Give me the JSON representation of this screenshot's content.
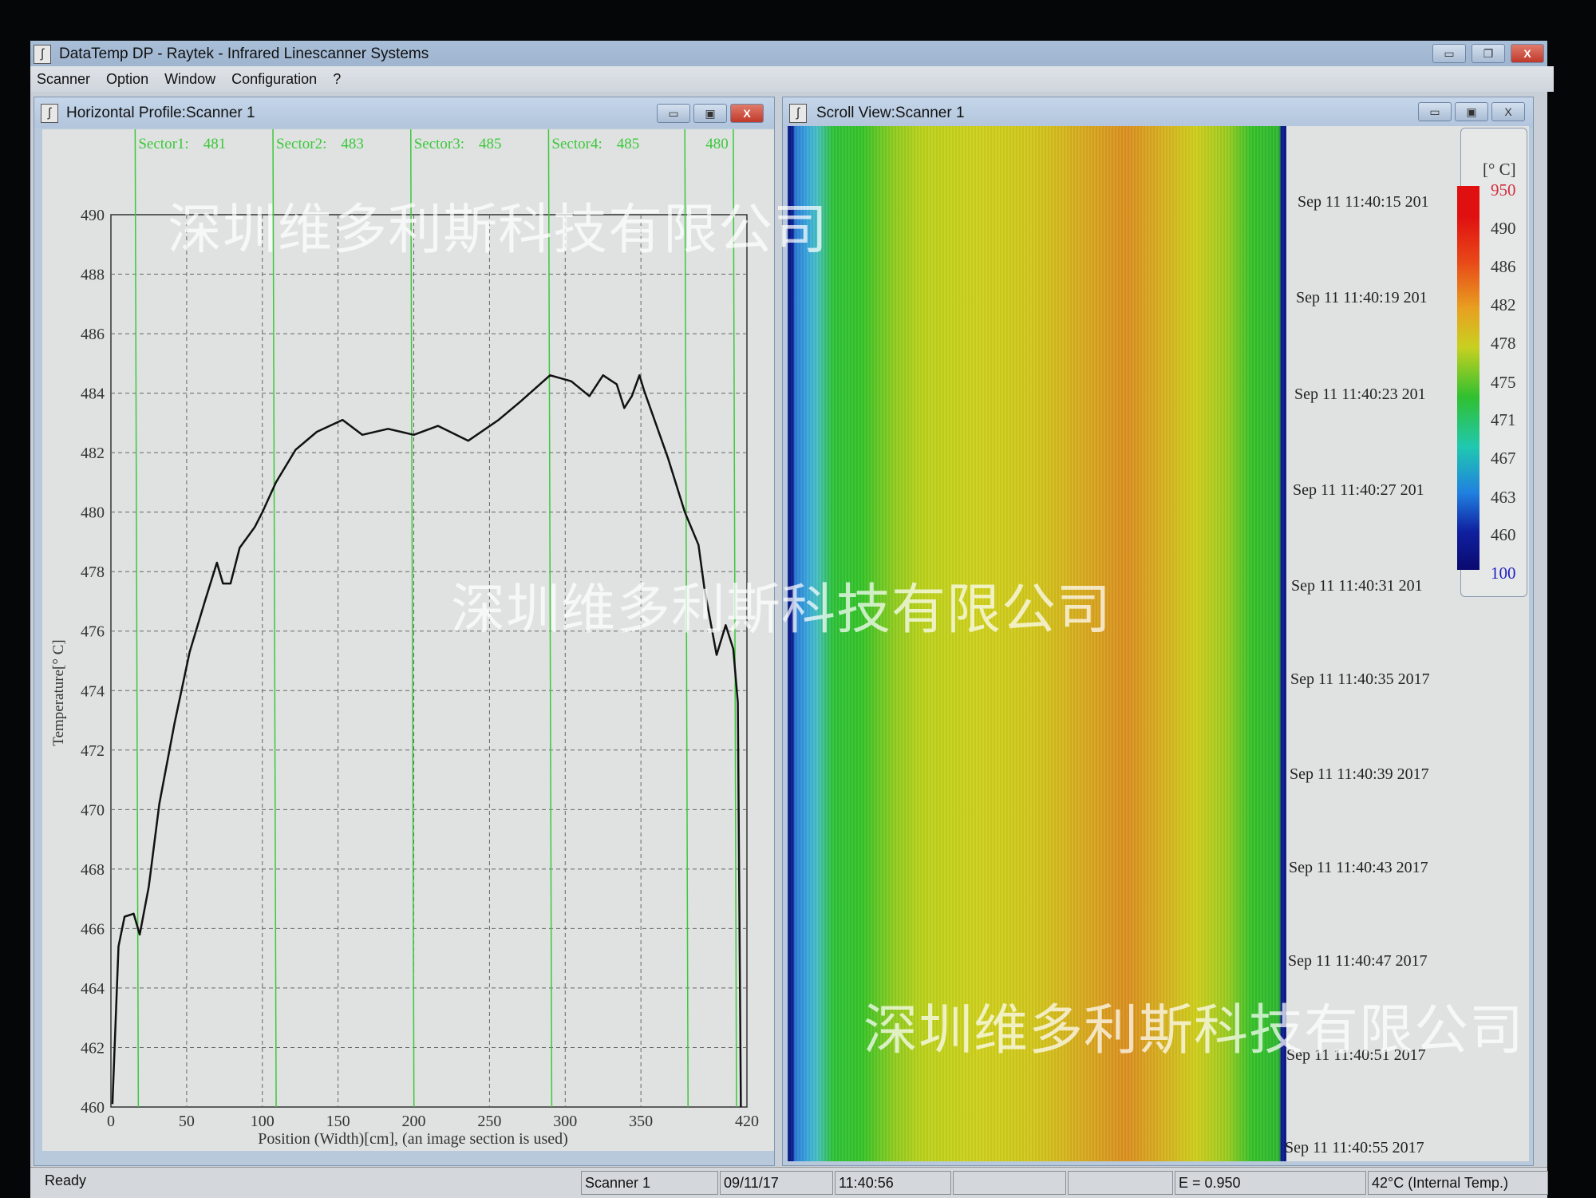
{
  "app": {
    "title": "DataTemp DP - Raytek - Infrared Linescanner Systems"
  },
  "menu": [
    "Scanner",
    "Option",
    "Window",
    "Configuration",
    "?"
  ],
  "profile_window": {
    "title": "Horizontal Profile:Scanner 1"
  },
  "scroll_window": {
    "title": "Scroll View:Scanner 1"
  },
  "watermark": "深圳维多利斯科技有限公司",
  "chart_data": {
    "type": "line",
    "xlabel": "Position (Width)[cm], (an image section is used)",
    "ylabel": "Temperature[° C]",
    "xlim": [
      0,
      420
    ],
    "ylim": [
      460,
      490
    ],
    "xticks": [
      0,
      50,
      100,
      150,
      200,
      250,
      300,
      350,
      420
    ],
    "yticks": [
      460,
      462,
      464,
      466,
      468,
      470,
      472,
      474,
      476,
      478,
      480,
      482,
      484,
      486,
      488,
      490
    ],
    "grid": true,
    "line_color": "#111111",
    "sector_line_color": "#3cc83c",
    "sector_lines": [
      16,
      107,
      198,
      289,
      379,
      411
    ],
    "sectors": [
      {
        "label": "Sector1:",
        "value": "481"
      },
      {
        "label": "Sector2:",
        "value": "483"
      },
      {
        "label": "Sector3:",
        "value": "485"
      },
      {
        "label": "Sector4:",
        "value": "485"
      },
      {
        "label": "",
        "value": "480"
      }
    ],
    "x": [
      1,
      5,
      9,
      15,
      19,
      25,
      32,
      42,
      52,
      62,
      70,
      74,
      79,
      85,
      95,
      100,
      109,
      122,
      136,
      153,
      166,
      183,
      200,
      216,
      236,
      256,
      270,
      290,
      304,
      316,
      325,
      334,
      339,
      344,
      349,
      352,
      368,
      379,
      388,
      392,
      400,
      406,
      411,
      414,
      416
    ],
    "y": [
      460.1,
      465.4,
      466.4,
      466.5,
      465.8,
      467.4,
      470.2,
      472.9,
      475.3,
      477,
      478.3,
      477.6,
      477.6,
      478.8,
      479.5,
      480,
      481,
      482.1,
      482.7,
      483.1,
      482.6,
      482.8,
      482.6,
      482.9,
      482.4,
      483.1,
      483.7,
      484.6,
      484.4,
      483.9,
      484.6,
      484.3,
      483.5,
      483.9,
      484.6,
      484.1,
      481.8,
      480,
      478.9,
      477.4,
      475.2,
      476.2,
      475.4,
      473.6,
      460
    ]
  },
  "timestamps": [
    "Sep 11 11:40:15 201",
    "Sep 11 11:40:19 201",
    "Sep 11 11:40:23 201",
    "Sep 11 11:40:27 201",
    "Sep 11 11:40:31 201",
    "Sep 11 11:40:35 2017",
    "Sep 11 11:40:39 2017",
    "Sep 11 11:40:43 2017",
    "Sep 11 11:40:47 2017",
    "Sep 11 11:40:51 2017",
    "Sep 11 11:40:55 2017"
  ],
  "legend": {
    "unit": "[° C]",
    "values": [
      "950",
      "490",
      "486",
      "482",
      "478",
      "475",
      "471",
      "467",
      "463",
      "460",
      "100"
    ],
    "top_color": "#d03040",
    "bottom_color": "#2020c0"
  },
  "status": {
    "ready": "Ready",
    "scanner": "Scanner 1",
    "date": "09/11/17",
    "time": "11:40:56",
    "emissivity": "E = 0.950",
    "internal_temp": "42°C (Internal Temp.)"
  }
}
